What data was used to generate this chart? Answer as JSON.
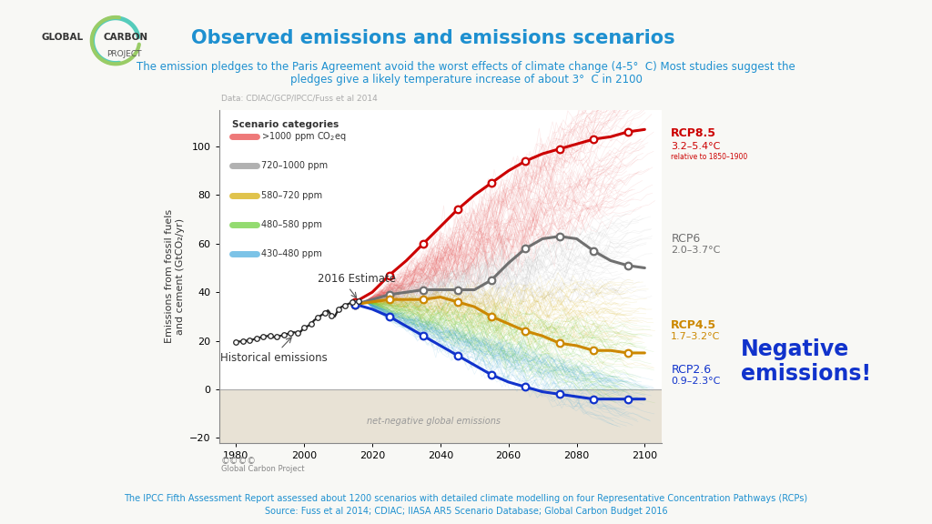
{
  "title": "Observed emissions and emissions scenarios",
  "subtitle_line1": "The emission pledges to the Paris Agreement avoid the worst effects of climate change (4-5°  C) Most studies suggest the",
  "subtitle_line2": "pledges give a likely temperature increase of about 3°  C in 2100",
  "data_source": "Data: CDIAC/GCP/IPCC/Fuss et al 2014",
  "footer": "The IPCC Fifth Assessment Report assessed about 1200 scenarios with detailed climate modelling on four Representative Concentration Pathways (RCPs)",
  "footer2": "Source: Fuss et al 2014; CDIAC; IIASA AR5 Scenario Database; Global Carbon Budget 2016",
  "ylabel": "Emissions from fossil fuels\nand cement (GtCO₂/yr)",
  "xlim": [
    1975,
    2105
  ],
  "ylim": [
    -22,
    115
  ],
  "xticks": [
    1980,
    2000,
    2020,
    2040,
    2060,
    2080,
    2100
  ],
  "yticks": [
    -20,
    0,
    20,
    40,
    60,
    80,
    100
  ],
  "bg_color": "#f8f8f5",
  "plot_bg": "#ffffff",
  "negative_zone_color": "#e8e2d5",
  "historical_color": "#222222",
  "rcp85_color": "#cc0000",
  "rcp6_color": "#707070",
  "rcp45_color": "#cc8800",
  "rcp26_color": "#1133cc",
  "scenario_colors_gt1000": "#e84040",
  "scenario_colors_720_1000": "#909090",
  "scenario_colors_580_720": "#d4aa00",
  "scenario_colors_480_580": "#66cc33",
  "scenario_colors_430_480": "#44aadd",
  "legend_labels": [
    ">1000 ppm CO₂eq",
    "720–1000 ppm",
    "580–720 ppm",
    "480–580 ppm",
    "430–480 ppm"
  ],
  "rcp85_label": "RCP8.5",
  "rcp85_temp": "3.2–5.4°C",
  "rcp85_note": "relative to 1850–1900",
  "rcp6_label": "RCP6",
  "rcp6_temp": "2.0–3.7°C",
  "rcp45_label": "RCP4.5",
  "rcp45_temp": "1.7–3.2°C",
  "rcp26_label": "RCP2.6",
  "rcp26_temp": "0.9–2.3°C",
  "neg_emissions_label": "Negative\nemissions!",
  "net_negative_label": "net-negative global emissions",
  "hist_label": "Historical emissions",
  "estimate_label": "2016 Estimate",
  "historical_x": [
    1980,
    1981,
    1982,
    1983,
    1984,
    1985,
    1986,
    1987,
    1988,
    1989,
    1990,
    1991,
    1992,
    1993,
    1994,
    1995,
    1996,
    1997,
    1998,
    1999,
    2000,
    2001,
    2002,
    2003,
    2004,
    2005,
    2006,
    2007,
    2008,
    2009,
    2010,
    2011,
    2012,
    2013,
    2014,
    2015,
    2016
  ],
  "historical_y": [
    19.5,
    19.7,
    19.8,
    20.0,
    20.3,
    20.5,
    21.0,
    21.3,
    21.8,
    21.9,
    22.2,
    21.5,
    21.8,
    22.0,
    22.5,
    22.8,
    23.2,
    23.5,
    23.2,
    23.8,
    25.5,
    26.0,
    27.0,
    28.5,
    29.5,
    30.5,
    31.5,
    32.5,
    30.5,
    30.0,
    32.8,
    34.0,
    34.5,
    35.2,
    35.8,
    36.2,
    36.3
  ],
  "rcp85_x": [
    2015,
    2020,
    2025,
    2030,
    2035,
    2040,
    2045,
    2050,
    2055,
    2060,
    2065,
    2070,
    2075,
    2080,
    2085,
    2090,
    2095,
    2100
  ],
  "rcp85_y": [
    36,
    40,
    47,
    53,
    60,
    67,
    74,
    80,
    85,
    90,
    94,
    97,
    99,
    101,
    103,
    104,
    106,
    107
  ],
  "rcp6_x": [
    2015,
    2020,
    2025,
    2030,
    2035,
    2040,
    2045,
    2050,
    2055,
    2060,
    2065,
    2070,
    2075,
    2080,
    2085,
    2090,
    2095,
    2100
  ],
  "rcp6_y": [
    35,
    37,
    39,
    40,
    41,
    41,
    41,
    41,
    45,
    52,
    58,
    62,
    63,
    62,
    57,
    53,
    51,
    50
  ],
  "rcp45_x": [
    2015,
    2020,
    2025,
    2030,
    2035,
    2040,
    2045,
    2050,
    2055,
    2060,
    2065,
    2070,
    2075,
    2080,
    2085,
    2090,
    2095,
    2100
  ],
  "rcp45_y": [
    35,
    36,
    37,
    37,
    37,
    38,
    36,
    34,
    30,
    27,
    24,
    22,
    19,
    18,
    16,
    16,
    15,
    15
  ],
  "rcp26_x": [
    2015,
    2020,
    2025,
    2030,
    2035,
    2040,
    2045,
    2050,
    2055,
    2060,
    2065,
    2070,
    2075,
    2080,
    2085,
    2090,
    2095,
    2100
  ],
  "rcp26_y": [
    35,
    33,
    30,
    26,
    22,
    18,
    14,
    10,
    6,
    3,
    1,
    -1,
    -2,
    -3,
    -4,
    -4,
    -4,
    -4
  ],
  "title_color": "#1e90d0",
  "subtitle_color": "#1e90d0",
  "rcp85_text_color": "#cc0000",
  "rcp6_text_color": "#707070",
  "rcp45_text_color": "#cc8800",
  "rcp26_text_color": "#1133cc",
  "neg_emissions_color": "#1133cc",
  "footer_color": "#1e90d0"
}
